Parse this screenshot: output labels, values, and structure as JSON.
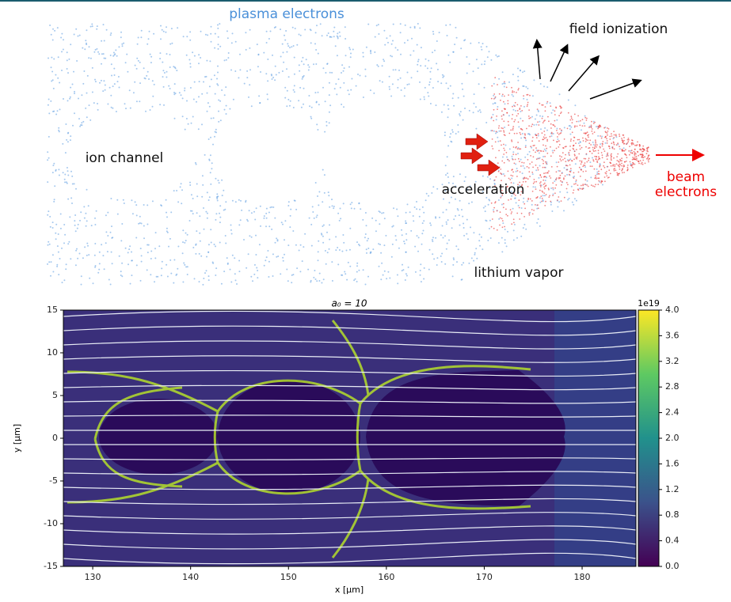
{
  "illustration": {
    "plasma_label": "plasma electrons",
    "field_label": "field ionization",
    "channel_label": "ion channel",
    "acceleration_label": "acceleration",
    "beam_label": [
      "beam",
      "electrons"
    ],
    "vapor_label": "lithium vapor"
  },
  "plot": {
    "title": "a₀ = 10",
    "xlabel": "x [μm]",
    "ylabel": "y [μm]",
    "xlim": [
      127,
      185.5
    ],
    "xticks": [
      130,
      140,
      150,
      160,
      170,
      180
    ],
    "ylim": [
      -15,
      15
    ],
    "yticks": [
      -15,
      -10,
      -5,
      0,
      5,
      10,
      15
    ],
    "colorbar": {
      "label": "1e19",
      "lim": [
        0,
        4
      ],
      "ticks": [
        {
          "value": 0,
          "label": "0.0"
        },
        0.4,
        0.8,
        1.2,
        1.6,
        {
          "value": 2,
          "label": "2.0"
        },
        2.4,
        2.8,
        3.2,
        3.6,
        {
          "value": 4,
          "label": "4.0"
        }
      ]
    }
  }
}
